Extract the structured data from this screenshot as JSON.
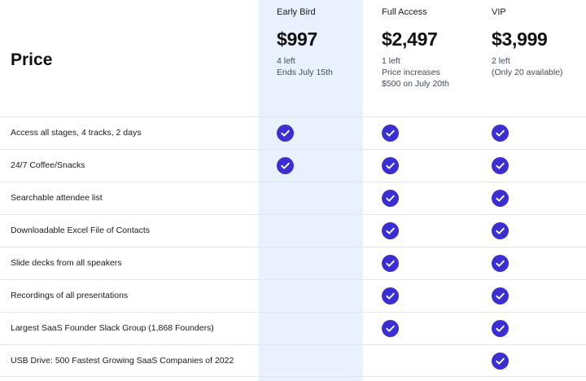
{
  "header": {
    "price_label": "Price",
    "plans": [
      {
        "name": "Early Bird",
        "price": "$997",
        "note_lines": [
          "4 left",
          "Ends July 15th"
        ]
      },
      {
        "name": "Full Access",
        "price": "$2,497",
        "note_lines": [
          "1 left",
          "Price increases",
          "$500 on July 20th"
        ]
      },
      {
        "name": "VIP",
        "price": "$3,999",
        "note_lines": [
          "2 left",
          "(Only 20 available)"
        ]
      }
    ]
  },
  "colors": {
    "check": "#3b2fd0",
    "highlight": "#eaf1fe"
  },
  "features": [
    {
      "label": "Access all stages, 4 tracks, 2 days",
      "early_bird": true,
      "full_access": true,
      "vip": true
    },
    {
      "label": "24/7 Coffee/Snacks",
      "early_bird": true,
      "full_access": true,
      "vip": true
    },
    {
      "label": "Searchable attendee list",
      "early_bird": false,
      "full_access": true,
      "vip": true
    },
    {
      "label": "Downloadable Excel File of Contacts",
      "early_bird": false,
      "full_access": true,
      "vip": true
    },
    {
      "label": "Slide decks from all speakers",
      "early_bird": false,
      "full_access": true,
      "vip": true
    },
    {
      "label": "Recordings of all presentations",
      "early_bird": false,
      "full_access": true,
      "vip": true
    },
    {
      "label": "Largest SaaS Founder Slack Group (1,868 Founders)",
      "early_bird": false,
      "full_access": true,
      "vip": true
    },
    {
      "label": "USB Drive: 500 Fastest Growing SaaS Companies of 2022",
      "early_bird": false,
      "full_access": false,
      "vip": true
    }
  ]
}
